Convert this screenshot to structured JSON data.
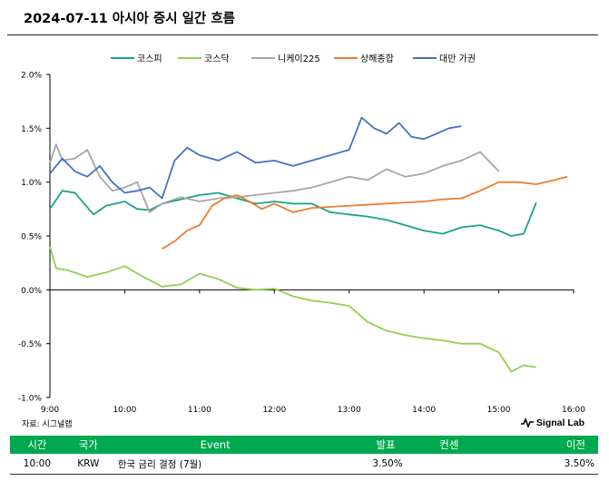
{
  "page": {
    "title": "2024-07-11 아시아 증시 일간 흐름",
    "source": "자료: 시그널랩",
    "brand": "Signal Lab"
  },
  "colors": {
    "kospi": "#1aa386",
    "kosdaq": "#92d050",
    "nikkei": "#a6a6a6",
    "shanghai": "#ed7d31",
    "taiwan": "#4472c4",
    "table_header": "#00a84f"
  },
  "chart_data": {
    "type": "line",
    "ylim": [
      -1.0,
      2.0
    ],
    "y_ticks": [
      "2.0%",
      "1.5%",
      "1.0%",
      "0.5%",
      "0.0%",
      "-0.5%",
      "-1.0%"
    ],
    "y_tick_values": [
      2.0,
      1.5,
      1.0,
      0.5,
      0.0,
      -0.5,
      -1.0
    ],
    "x_ticks": [
      "9:00",
      "10:00",
      "11:00",
      "12:00",
      "13:00",
      "14:00",
      "15:00",
      "16:00"
    ],
    "xlim": [
      "9:00",
      "16:00"
    ],
    "legend_position": "top",
    "grid": false,
    "series": [
      {
        "name": "코스피",
        "color_key": "kospi",
        "x": [
          "9:00",
          "9:10",
          "9:20",
          "9:35",
          "9:45",
          "10:00",
          "10:10",
          "10:20",
          "10:30",
          "10:45",
          "11:00",
          "11:15",
          "11:30",
          "11:45",
          "12:00",
          "12:15",
          "12:30",
          "12:45",
          "13:00",
          "13:15",
          "13:30",
          "13:45",
          "14:00",
          "14:15",
          "14:30",
          "14:45",
          "15:00",
          "15:10",
          "15:20",
          "15:30"
        ],
        "values": [
          0.75,
          0.92,
          0.9,
          0.7,
          0.78,
          0.82,
          0.75,
          0.74,
          0.8,
          0.84,
          0.88,
          0.9,
          0.85,
          0.8,
          0.82,
          0.8,
          0.8,
          0.72,
          0.7,
          0.68,
          0.65,
          0.6,
          0.55,
          0.52,
          0.58,
          0.6,
          0.55,
          0.5,
          0.52,
          0.81
        ]
      },
      {
        "name": "코스닥",
        "color_key": "kosdaq",
        "x": [
          "9:00",
          "9:05",
          "9:15",
          "9:30",
          "9:45",
          "10:00",
          "10:15",
          "10:30",
          "10:45",
          "11:00",
          "11:15",
          "11:30",
          "11:45",
          "12:00",
          "12:15",
          "12:30",
          "12:45",
          "13:00",
          "13:15",
          "13:30",
          "13:45",
          "14:00",
          "14:15",
          "14:30",
          "14:45",
          "15:00",
          "15:10",
          "15:20",
          "15:30"
        ],
        "values": [
          0.4,
          0.2,
          0.18,
          0.12,
          0.16,
          0.22,
          0.12,
          0.03,
          0.05,
          0.15,
          0.1,
          0.02,
          0.0,
          0.01,
          -0.06,
          -0.1,
          -0.12,
          -0.15,
          -0.3,
          -0.38,
          -0.42,
          -0.45,
          -0.47,
          -0.5,
          -0.5,
          -0.58,
          -0.76,
          -0.7,
          -0.72
        ]
      },
      {
        "name": "니케이225",
        "color_key": "nikkei",
        "x": [
          "9:00",
          "9:05",
          "9:10",
          "9:20",
          "9:30",
          "9:40",
          "9:50",
          "10:00",
          "10:10",
          "10:20",
          "10:30",
          "10:45",
          "11:00",
          "11:15",
          "11:30",
          "11:45",
          "12:00",
          "12:15",
          "12:30",
          "12:45",
          "13:00",
          "13:15",
          "13:30",
          "13:45",
          "14:00",
          "14:15",
          "14:30",
          "14:45",
          "15:00"
        ],
        "values": [
          1.18,
          1.35,
          1.2,
          1.22,
          1.3,
          1.05,
          0.92,
          0.95,
          1.0,
          0.72,
          0.8,
          0.86,
          0.82,
          0.85,
          0.86,
          0.88,
          0.9,
          0.92,
          0.95,
          1.0,
          1.05,
          1.02,
          1.12,
          1.05,
          1.08,
          1.15,
          1.2,
          1.28,
          1.1
        ]
      },
      {
        "name": "상해종합",
        "color_key": "shanghai",
        "x": [
          "10:30",
          "10:40",
          "10:50",
          "11:00",
          "11:10",
          "11:20",
          "11:30",
          "11:40",
          "11:50",
          "12:00",
          "12:15",
          "12:30",
          "14:00",
          "14:15",
          "14:30",
          "14:45",
          "15:00",
          "15:15",
          "15:30",
          "15:45",
          "15:55"
        ],
        "values": [
          0.38,
          0.45,
          0.55,
          0.6,
          0.78,
          0.85,
          0.88,
          0.82,
          0.75,
          0.8,
          0.72,
          0.76,
          0.82,
          0.84,
          0.85,
          0.92,
          1.0,
          1.0,
          0.98,
          1.02,
          1.05
        ]
      },
      {
        "name": "대만 가권",
        "color_key": "taiwan",
        "x": [
          "9:00",
          "9:10",
          "9:20",
          "9:30",
          "9:40",
          "9:50",
          "10:00",
          "10:10",
          "10:20",
          "10:30",
          "10:40",
          "10:50",
          "11:00",
          "11:15",
          "11:30",
          "11:45",
          "12:00",
          "12:15",
          "12:30",
          "12:45",
          "13:00",
          "13:10",
          "13:20",
          "13:30",
          "13:40",
          "13:50",
          "14:00",
          "14:10",
          "14:20",
          "14:30"
        ],
        "values": [
          1.08,
          1.22,
          1.1,
          1.05,
          1.15,
          1.0,
          0.9,
          0.92,
          0.95,
          0.85,
          1.2,
          1.32,
          1.25,
          1.2,
          1.28,
          1.18,
          1.2,
          1.15,
          1.2,
          1.25,
          1.3,
          1.6,
          1.5,
          1.45,
          1.55,
          1.42,
          1.4,
          1.45,
          1.5,
          1.52
        ]
      }
    ]
  },
  "events_table": {
    "headers": {
      "time": "시간",
      "country": "국가",
      "event": "Event",
      "actual": "발표",
      "consensus": "컨센",
      "previous": "이전"
    },
    "rows": [
      {
        "time": "10:00",
        "country": "KRW",
        "event": "한국 금리 결정 (7월)",
        "actual": "3.50%",
        "consensus": "",
        "previous": "3.50%"
      }
    ]
  }
}
